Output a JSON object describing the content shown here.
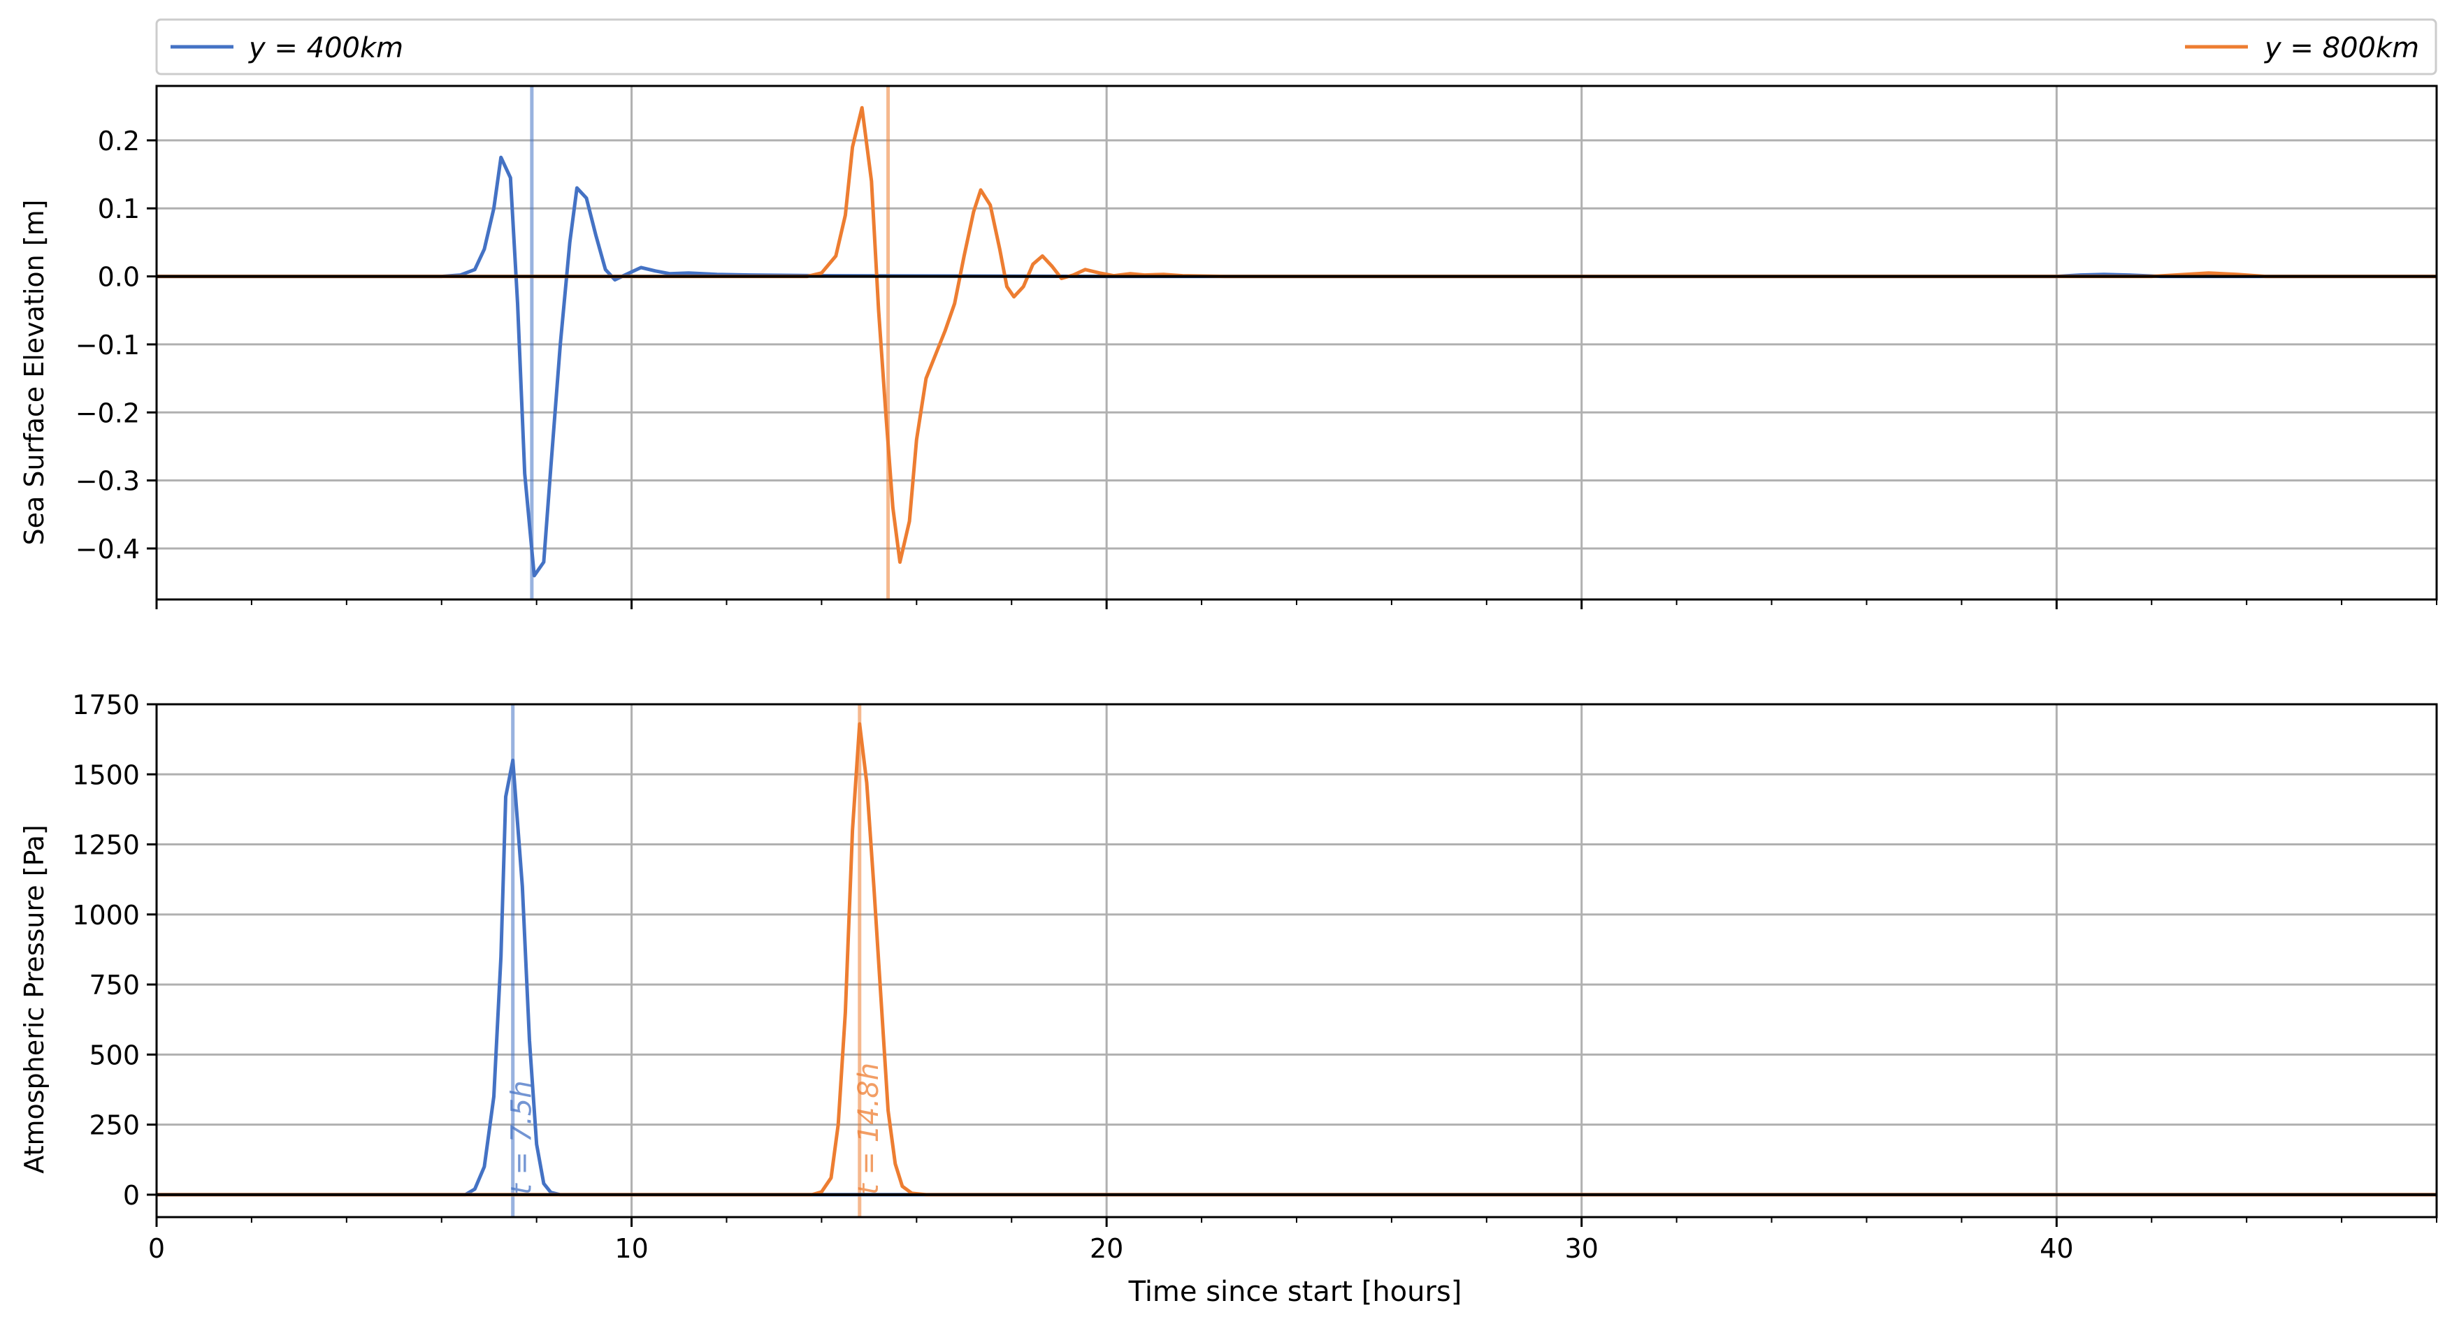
{
  "legend": {
    "placement": "top, spanning full width (series at left and right ends)",
    "items": [
      {
        "label": "y = 400km",
        "color": "#4472c4"
      },
      {
        "label": "y = 800km",
        "color": "#ed7d31"
      }
    ]
  },
  "colors": {
    "series_400": "#4472c4",
    "series_800": "#ed7d31",
    "grid": "#b0b0b0",
    "zero_line": "#000000"
  },
  "xlabel": "Time since start [hours]",
  "chart_data": [
    {
      "type": "line",
      "title": "",
      "xlabel": "",
      "ylabel": "Sea Surface Elevation [m]",
      "xlim": [
        0,
        48
      ],
      "ylim": [
        -0.475,
        0.28
      ],
      "xticks": [
        0,
        10,
        20,
        30,
        40
      ],
      "xticklabels": [
        "0",
        "10",
        "20",
        "30",
        "40"
      ],
      "yticks": [
        0.2,
        0.1,
        0.0,
        -0.1,
        -0.2,
        -0.3,
        -0.4
      ],
      "yticklabels": [
        "0.2",
        "0.1",
        "0.0",
        "−0.1",
        "−0.2",
        "−0.3",
        "−0.4"
      ],
      "grid": true,
      "zero_line": true,
      "vlines": [
        {
          "x": 7.9,
          "color": "#4472c4"
        },
        {
          "x": 15.4,
          "color": "#ed7d31"
        }
      ],
      "series": [
        {
          "name": "y = 400km",
          "color": "#4472c4",
          "points": [
            [
              0,
              0
            ],
            [
              6.0,
              0
            ],
            [
              6.4,
              0.002
            ],
            [
              6.7,
              0.01
            ],
            [
              6.9,
              0.04
            ],
            [
              7.1,
              0.1
            ],
            [
              7.25,
              0.175
            ],
            [
              7.45,
              0.145
            ],
            [
              7.6,
              -0.04
            ],
            [
              7.75,
              -0.29
            ],
            [
              7.95,
              -0.44
            ],
            [
              8.15,
              -0.42
            ],
            [
              8.3,
              -0.28
            ],
            [
              8.5,
              -0.1
            ],
            [
              8.7,
              0.05
            ],
            [
              8.85,
              0.13
            ],
            [
              9.05,
              0.115
            ],
            [
              9.25,
              0.06
            ],
            [
              9.45,
              0.01
            ],
            [
              9.65,
              -0.005
            ],
            [
              9.95,
              0.005
            ],
            [
              10.2,
              0.013
            ],
            [
              10.5,
              0.008
            ],
            [
              10.8,
              0.004
            ],
            [
              11.2,
              0.005
            ],
            [
              11.8,
              0.003
            ],
            [
              12.5,
              0.002
            ],
            [
              14,
              0.001
            ],
            [
              20,
              0
            ],
            [
              40,
              0
            ],
            [
              40.5,
              0.002
            ],
            [
              41.0,
              0.003
            ],
            [
              41.5,
              0.002
            ],
            [
              42.2,
              0
            ],
            [
              48,
              0
            ]
          ]
        },
        {
          "name": "y = 800km",
          "color": "#ed7d31",
          "points": [
            [
              0,
              0
            ],
            [
              13.7,
              0
            ],
            [
              14.0,
              0.005
            ],
            [
              14.3,
              0.03
            ],
            [
              14.5,
              0.09
            ],
            [
              14.65,
              0.19
            ],
            [
              14.85,
              0.248
            ],
            [
              15.05,
              0.14
            ],
            [
              15.2,
              -0.05
            ],
            [
              15.35,
              -0.2
            ],
            [
              15.5,
              -0.34
            ],
            [
              15.65,
              -0.42
            ],
            [
              15.85,
              -0.36
            ],
            [
              16.0,
              -0.24
            ],
            [
              16.2,
              -0.15
            ],
            [
              16.4,
              -0.115
            ],
            [
              16.6,
              -0.08
            ],
            [
              16.8,
              -0.04
            ],
            [
              17.0,
              0.03
            ],
            [
              17.2,
              0.095
            ],
            [
              17.35,
              0.127
            ],
            [
              17.55,
              0.105
            ],
            [
              17.75,
              0.04
            ],
            [
              17.9,
              -0.015
            ],
            [
              18.05,
              -0.03
            ],
            [
              18.25,
              -0.015
            ],
            [
              18.45,
              0.018
            ],
            [
              18.65,
              0.03
            ],
            [
              18.85,
              0.015
            ],
            [
              19.05,
              -0.003
            ],
            [
              19.3,
              0.002
            ],
            [
              19.55,
              0.01
            ],
            [
              19.85,
              0.005
            ],
            [
              20.15,
              0.001
            ],
            [
              20.5,
              0.004
            ],
            [
              20.8,
              0.002
            ],
            [
              21.2,
              0.003
            ],
            [
              21.6,
              0.001
            ],
            [
              22.5,
              0
            ],
            [
              42.0,
              0
            ],
            [
              42.5,
              0.002
            ],
            [
              43.2,
              0.005
            ],
            [
              43.8,
              0.003
            ],
            [
              44.4,
              0
            ],
            [
              48,
              0
            ]
          ]
        }
      ]
    },
    {
      "type": "line",
      "title": "",
      "xlabel": "Time since start [hours]",
      "ylabel": "Atmospheric Pressure [Pa]",
      "xlim": [
        0,
        48
      ],
      "ylim": [
        -80,
        1750
      ],
      "xticks": [
        0,
        10,
        20,
        30,
        40
      ],
      "xticklabels": [
        "0",
        "10",
        "20",
        "30",
        "40"
      ],
      "yticks": [
        0,
        250,
        500,
        750,
        1000,
        1250,
        1500,
        1750
      ],
      "yticklabels": [
        "0",
        "250",
        "500",
        "750",
        "1000",
        "1250",
        "1500",
        "1750"
      ],
      "grid": true,
      "zero_line": true,
      "vlines": [
        {
          "x": 7.5,
          "color": "#4472c4",
          "label": "t = 7.5h"
        },
        {
          "x": 14.8,
          "color": "#ed7d31",
          "label": "t = 14.8h"
        }
      ],
      "series": [
        {
          "name": "y = 400km",
          "color": "#4472c4",
          "points": [
            [
              0,
              0
            ],
            [
              6.5,
              0
            ],
            [
              6.7,
              20
            ],
            [
              6.9,
              100
            ],
            [
              7.1,
              350
            ],
            [
              7.25,
              850
            ],
            [
              7.35,
              1420
            ],
            [
              7.5,
              1550
            ],
            [
              7.7,
              1100
            ],
            [
              7.85,
              550
            ],
            [
              8.0,
              180
            ],
            [
              8.15,
              40
            ],
            [
              8.3,
              8
            ],
            [
              8.5,
              0
            ],
            [
              48,
              0
            ]
          ]
        },
        {
          "name": "y = 800km",
          "color": "#ed7d31",
          "points": [
            [
              0,
              0
            ],
            [
              13.8,
              0
            ],
            [
              14.0,
              10
            ],
            [
              14.2,
              60
            ],
            [
              14.35,
              250
            ],
            [
              14.5,
              650
            ],
            [
              14.65,
              1300
            ],
            [
              14.8,
              1680
            ],
            [
              14.95,
              1470
            ],
            [
              15.1,
              1100
            ],
            [
              15.25,
              700
            ],
            [
              15.4,
              300
            ],
            [
              15.55,
              110
            ],
            [
              15.7,
              30
            ],
            [
              15.9,
              5
            ],
            [
              16.2,
              0
            ],
            [
              48,
              0
            ]
          ]
        }
      ]
    }
  ]
}
